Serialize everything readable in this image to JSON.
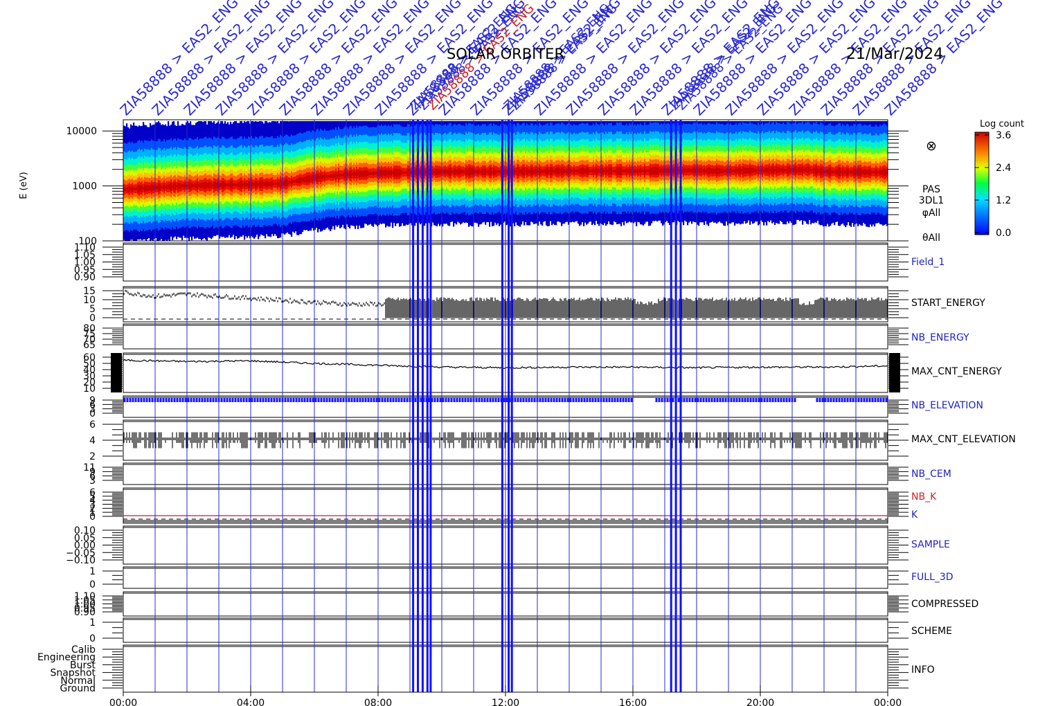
{
  "header": {
    "mission": "SOLAR ORBITER",
    "date": "21/Mar/2024",
    "event_marker_label": "ZIA58888 > EAS2_ENG"
  },
  "colorbar": {
    "title": "Log count",
    "ticks": [
      "3.6",
      "2.4",
      "1.2",
      "0.0"
    ],
    "range": [
      0.0,
      3.6
    ]
  },
  "spectrogram": {
    "ylabel": "E (eV)",
    "yticks": [
      "10000",
      "1000",
      "100"
    ],
    "ylog": true,
    "yrange": [
      100,
      16000
    ],
    "side_labels": [
      "PAS",
      "3DL1",
      "φAll",
      "θAll"
    ],
    "symbol": "⊗"
  },
  "panels": [
    {
      "label": "Field_1",
      "label_color": "#2222bb",
      "ticks": [
        "1.10",
        "1.05",
        "1.00",
        "0.95",
        "0.90"
      ]
    },
    {
      "label": "START_ENERGY",
      "label_color": "#000000",
      "ticks": [
        "15",
        "10",
        "5",
        "0"
      ]
    },
    {
      "label": "NB_ENERGY",
      "label_color": "#2222bb",
      "ticks": [
        "80",
        "75",
        "70",
        "65"
      ]
    },
    {
      "label": "MAX_CNT_ENERGY",
      "label_color": "#000000",
      "ticks": [
        "60",
        "50",
        "40",
        "30",
        "20",
        "10"
      ]
    },
    {
      "label": "NB_ELEVATION",
      "label_color": "#2222bb",
      "ticks": [
        "9",
        "6",
        "3",
        "0"
      ]
    },
    {
      "label": "MAX_CNT_ELEVATION",
      "label_color": "#000000",
      "ticks": [
        "6",
        "4",
        "2"
      ]
    },
    {
      "label": "NB_CEM",
      "label_color": "#2222bb",
      "ticks": [
        "11",
        "9",
        "6",
        "3"
      ]
    },
    {
      "label": "NB_K",
      "label_color": "#cc2222",
      "ticks": [
        "6",
        "5",
        "4",
        "3",
        "2",
        "1",
        "0"
      ]
    },
    {
      "label": "K",
      "label_color": "#2222bb",
      "ticks": []
    },
    {
      "label": "SAMPLE",
      "label_color": "#2222bb",
      "ticks": [
        "0.10",
        "0.05",
        "0.00",
        "−0.05",
        "−0.10"
      ]
    },
    {
      "label": "FULL_3D",
      "label_color": "#2222bb",
      "ticks": [
        "1",
        "0"
      ]
    },
    {
      "label": "COMPRESSED",
      "label_color": "#000000",
      "ticks": [
        "1.10",
        "1.05",
        "1.00",
        "0.95",
        "0.90"
      ]
    },
    {
      "label": "SCHEME",
      "label_color": "#000000",
      "ticks": [
        "1",
        "0"
      ]
    },
    {
      "label": "INFO",
      "label_color": "#000000",
      "ticks": [
        "Calib",
        "Engineering",
        "Burst",
        "Snapshot",
        "Normal",
        "Ground"
      ]
    }
  ],
  "xaxis": {
    "ticks": [
      "00:00",
      "04:00",
      "08:00",
      "12:00",
      "16:00",
      "20:00",
      "00:00"
    ]
  },
  "chart_data": {
    "type": "heatmap",
    "title": "SOLAR ORBITER 21/Mar/2024",
    "xlabel": "",
    "ylabel": "E (eV)",
    "x_range_hours": [
      0,
      24
    ],
    "y_log": true,
    "ylim": [
      100,
      16000
    ],
    "colorbar_range": [
      0.0,
      3.6
    ],
    "peak_energy_series": {
      "name": "",
      "x": [
        0,
        2,
        4,
        5,
        6,
        7,
        8,
        9,
        10,
        12,
        14,
        16,
        17.9,
        18.5,
        20,
        21.5,
        22,
        24
      ],
      "values": [
        850,
        1000,
        1050,
        1100,
        1400,
        1600,
        1700,
        1750,
        1800,
        1800,
        1850,
        1850,
        1900,
        1850,
        1900,
        1950,
        1800,
        1750
      ]
    },
    "max_cnt_energy_series": {
      "name": "MAX_CNT_ENERGY",
      "x": [
        0,
        2,
        4,
        6,
        8,
        10,
        12,
        14,
        16,
        18,
        20,
        22,
        24
      ],
      "values": [
        55,
        53,
        54,
        50,
        47,
        44,
        43,
        44,
        44,
        43,
        44,
        44,
        46
      ]
    },
    "start_energy_series": {
      "name": "START_ENERGY",
      "x": [
        0,
        1,
        2,
        3,
        4,
        5,
        6,
        7,
        8,
        9,
        10,
        12,
        14,
        16,
        18,
        20,
        22,
        24
      ],
      "values": [
        14,
        12,
        13,
        12,
        11,
        10,
        9,
        8,
        8,
        8,
        8,
        8,
        8,
        8,
        8,
        8,
        8,
        8
      ]
    },
    "marker_times_hours": [
      9.1,
      9.25,
      9.4,
      9.55,
      9.65,
      11.9,
      12.1,
      12.2,
      17.2,
      17.35,
      17.5
    ]
  }
}
